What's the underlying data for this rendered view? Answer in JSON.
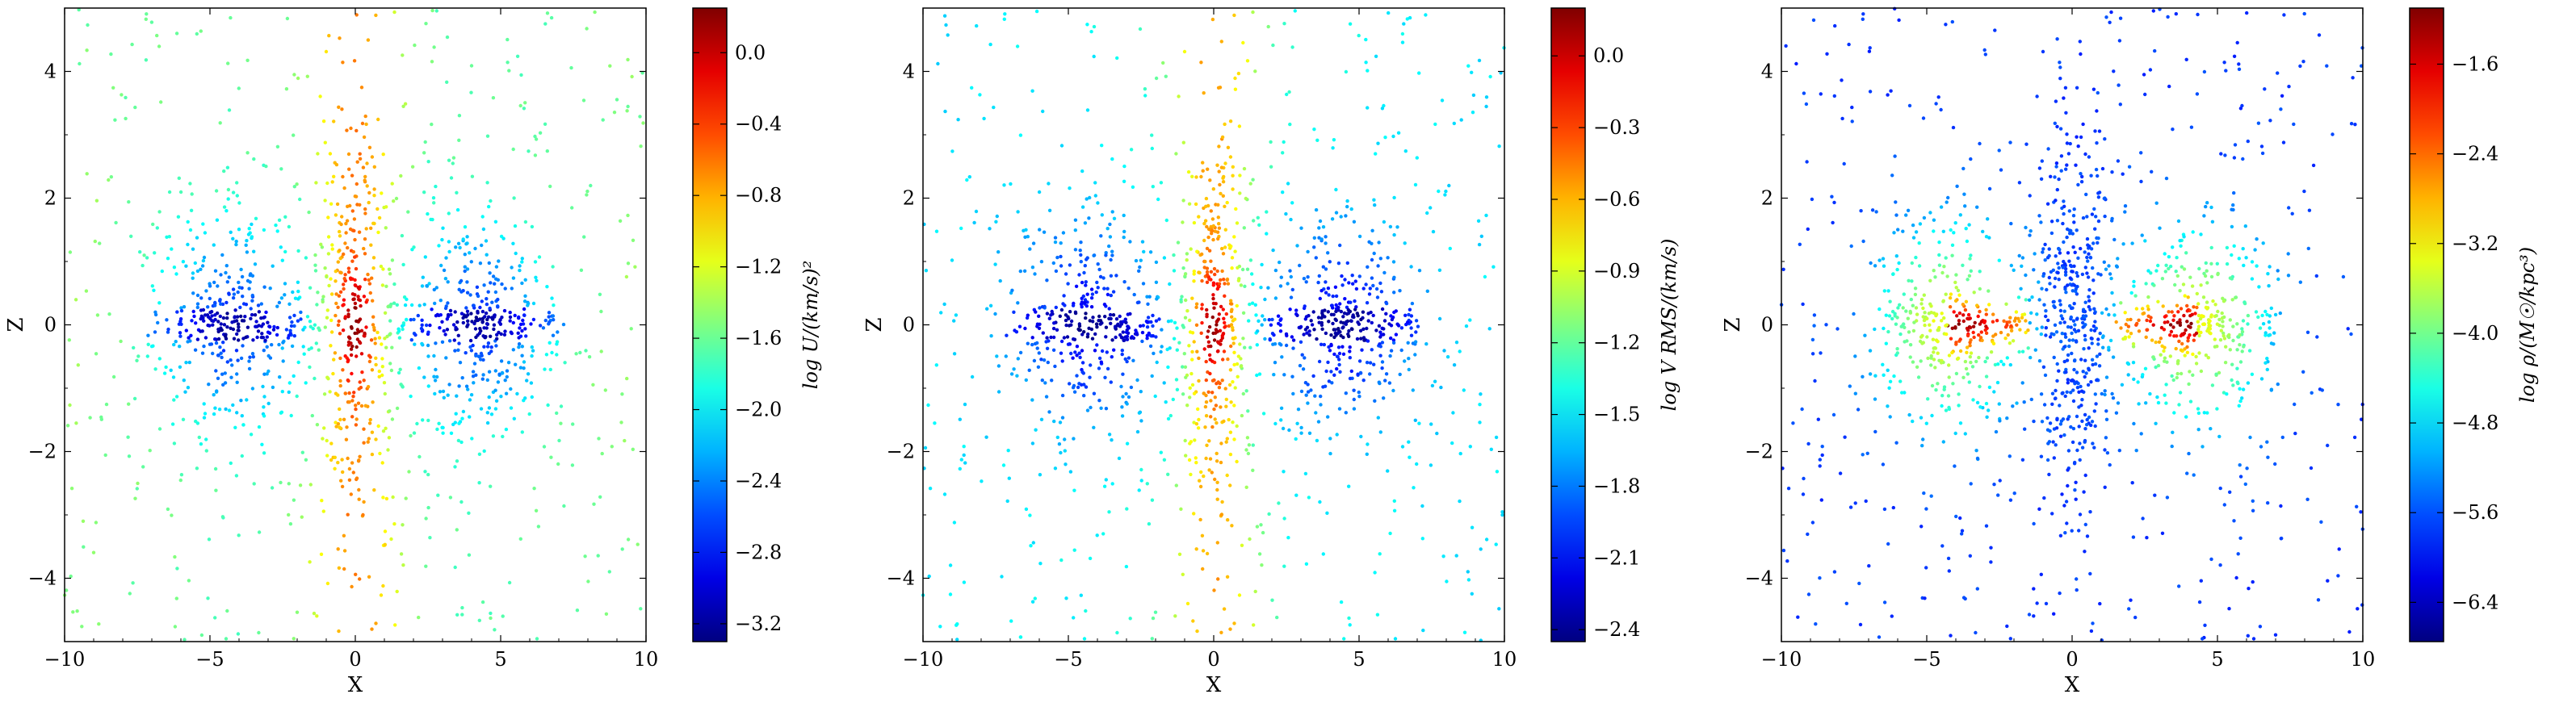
{
  "chart_data": [
    {
      "type": "scatter",
      "xlabel": "X",
      "ylabel": "Z",
      "xlim": [
        -10,
        10
      ],
      "ylim": [
        -5,
        5
      ],
      "xticks": [
        "−10",
        "−5",
        "0",
        "5",
        "10"
      ],
      "yticks": [
        "−4",
        "−2",
        "0",
        "2",
        "4"
      ],
      "colorbar": {
        "label": "log U/(km/s)²",
        "range": [
          -3.3,
          0.25
        ],
        "ticks": [
          0.0,
          -0.4,
          -0.8,
          -1.2,
          -1.6,
          -2.0,
          -2.4,
          -2.8,
          -3.2
        ],
        "tick_labels": [
          "0.0",
          "−0.4",
          "−0.8",
          "−1.2",
          "−1.6",
          "−2.0",
          "−2.4",
          "−2.8",
          "−3.2"
        ],
        "colormap": "jet"
      },
      "field": "energy"
    },
    {
      "type": "scatter",
      "xlabel": "X",
      "ylabel": "Z",
      "xlim": [
        -10,
        10
      ],
      "ylim": [
        -5,
        5
      ],
      "xticks": [
        "−10",
        "−5",
        "0",
        "5",
        "10"
      ],
      "yticks": [
        "−4",
        "−2",
        "0",
        "2",
        "4"
      ],
      "colorbar": {
        "label": "log V RMS/(km/s)",
        "range": [
          -2.45,
          0.2
        ],
        "ticks": [
          0.0,
          -0.3,
          -0.6,
          -0.9,
          -1.2,
          -1.5,
          -1.8,
          -2.1,
          -2.4
        ],
        "tick_labels": [
          "0.0",
          "−0.3",
          "−0.6",
          "−0.9",
          "−1.2",
          "−1.5",
          "−1.8",
          "−2.1",
          "−2.4"
        ],
        "colormap": "jet"
      },
      "field": "vrms"
    },
    {
      "type": "scatter",
      "xlabel": "X",
      "ylabel": "Z",
      "xlim": [
        -10,
        10
      ],
      "ylim": [
        -5,
        5
      ],
      "xticks": [
        "−10",
        "−5",
        "0",
        "5",
        "10"
      ],
      "yticks": [
        "−4",
        "−2",
        "0",
        "2",
        "4"
      ],
      "colorbar": {
        "label": "log ρ/(M☉/kpc³)",
        "range": [
          -6.75,
          -1.1
        ],
        "ticks": [
          -1.6,
          -2.4,
          -3.2,
          -4.0,
          -4.8,
          -5.6,
          -6.4
        ],
        "tick_labels": [
          "−1.6",
          "−2.4",
          "−3.2",
          "−4.0",
          "−4.8",
          "−5.6",
          "−6.4"
        ],
        "colormap": "jet"
      },
      "field": "density"
    }
  ]
}
